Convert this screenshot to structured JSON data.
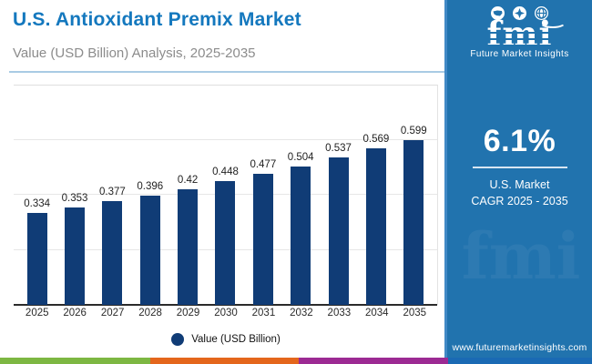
{
  "header": {
    "title": "U.S. Antioxidant Premix Market",
    "subtitle": "Value (USD Billion) Analysis, 2025-2035"
  },
  "chart_data": {
    "type": "bar",
    "categories": [
      "2025",
      "2026",
      "2027",
      "2028",
      "2029",
      "2030",
      "2031",
      "2032",
      "2033",
      "2034",
      "2035"
    ],
    "values": [
      0.334,
      0.353,
      0.377,
      0.396,
      0.42,
      0.448,
      0.477,
      0.504,
      0.537,
      0.569,
      0.599
    ],
    "value_labels": [
      "0.334",
      "0.353",
      "0.377",
      "0.396",
      "0.42",
      "0.448",
      "0.477",
      "0.504",
      "0.537",
      "0.569",
      "0.599"
    ],
    "title": "U.S. Antioxidant Premix Market",
    "xlabel": "",
    "ylabel": "Value (USD Billion)",
    "ylim": [
      0,
      0.8
    ],
    "gridline_values": [
      0.2,
      0.4,
      0.6
    ],
    "grid": "on",
    "legend_position": "bottom-center",
    "legend_entries": [
      "Value (USD Billion)"
    ],
    "bar_color": "#103c76"
  },
  "legend": {
    "label": "Value (USD Billion)",
    "marker": "circle-icon",
    "marker_color": "#103c76"
  },
  "sidebar": {
    "logo": {
      "word": "fmi",
      "tagline": "Future Market Insights",
      "icons": [
        "us-map-icon",
        "compass-icon",
        "globe-icon"
      ]
    },
    "stat": {
      "value": "6.1%",
      "line1": "U.S. Market",
      "line2": "CAGR 2025 - 2035"
    },
    "website": "www.futuremarketinsights.com",
    "background_color": "#2173ae"
  },
  "accent_colors": {
    "green": "#7db742",
    "orange": "#e4661c",
    "purple": "#9c2a93",
    "blue": "#1a6ab4"
  },
  "watermark": "fmi"
}
